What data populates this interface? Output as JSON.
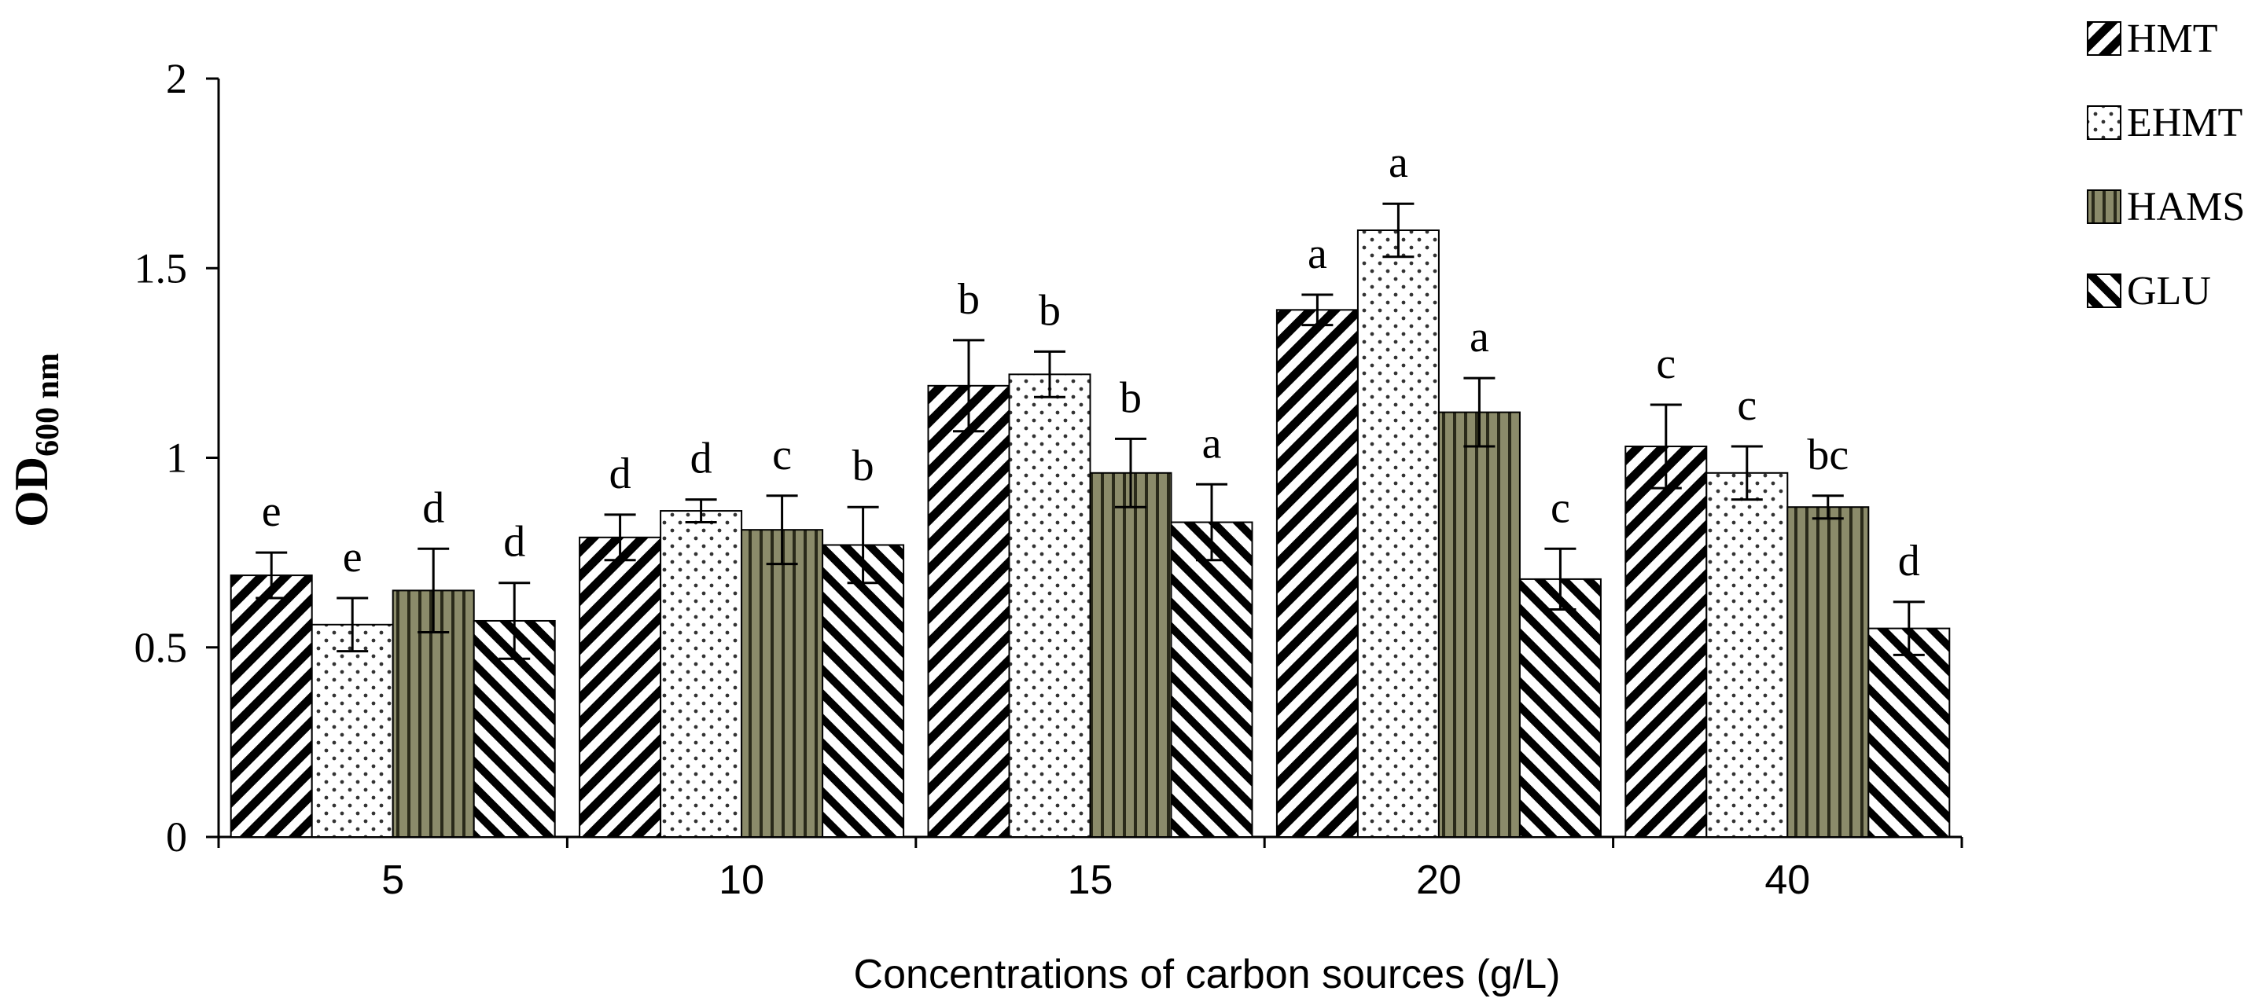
{
  "chart_data": {
    "type": "bar",
    "xlabel": "Concentrations of carbon sources (g/L)",
    "ylabel_main": "OD",
    "ylabel_sub": "600 nm",
    "ylim": [
      0,
      2
    ],
    "yticks": [
      0,
      0.5,
      1,
      1.5,
      2
    ],
    "ytick_labels": [
      "0",
      "0.5",
      "1",
      "1.5",
      "2"
    ],
    "categories": [
      "5",
      "10",
      "15",
      "20",
      "40"
    ],
    "legend_position": "top-right",
    "series": [
      {
        "name": "HMT",
        "pattern": "hatch-forward",
        "color": "#ffffff",
        "values": [
          0.69,
          0.79,
          1.19,
          1.39,
          1.03
        ],
        "errors": [
          0.06,
          0.06,
          0.12,
          0.04,
          0.11
        ],
        "labels": [
          "e",
          "d",
          "b",
          "a",
          "c"
        ]
      },
      {
        "name": "EHMT",
        "pattern": "dots",
        "color": "#ffffff",
        "values": [
          0.56,
          0.86,
          1.22,
          1.6,
          0.96
        ],
        "errors": [
          0.07,
          0.03,
          0.06,
          0.07,
          0.07
        ],
        "labels": [
          "e",
          "d",
          "b",
          "a",
          "c"
        ]
      },
      {
        "name": "HAMS",
        "pattern": "vertical-lines",
        "color": "#8b8b6a",
        "values": [
          0.65,
          0.81,
          0.96,
          1.12,
          0.87
        ],
        "errors": [
          0.11,
          0.09,
          0.09,
          0.09,
          0.03
        ],
        "labels": [
          "d",
          "c",
          "b",
          "a",
          "bc"
        ]
      },
      {
        "name": "GLU",
        "pattern": "hatch-backward",
        "color": "#ffffff",
        "values": [
          0.57,
          0.77,
          0.83,
          0.68,
          0.55
        ],
        "errors": [
          0.1,
          0.1,
          0.1,
          0.08,
          0.07
        ],
        "labels": [
          "d",
          "b",
          "a",
          "c",
          "d"
        ]
      }
    ]
  }
}
